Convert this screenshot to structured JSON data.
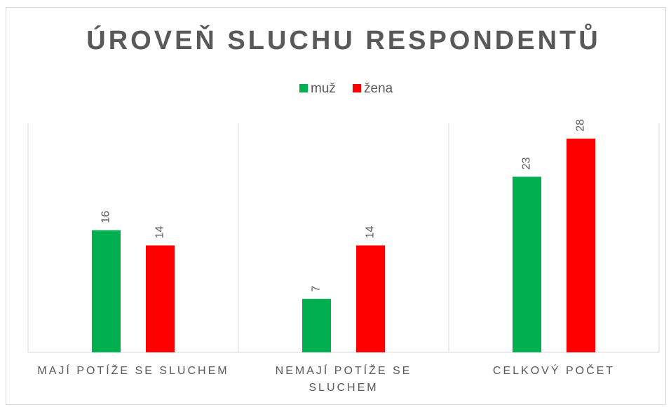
{
  "chart_data": {
    "type": "bar",
    "title": "ÚROVEŇ SLUCHU RESPONDENTŮ",
    "categories": [
      "MAJÍ POTÍŽE SE SLUCHEM",
      "NEMAJÍ POTÍŽE SE SLUCHEM",
      "CELKOVÝ POČET"
    ],
    "series": [
      {
        "name": "muž",
        "color": "#00b050",
        "values": [
          16,
          7,
          23
        ]
      },
      {
        "name": "žena",
        "color": "#ff0000",
        "values": [
          14,
          14,
          28
        ]
      }
    ],
    "ylim": [
      0,
      30
    ],
    "legend": "top"
  }
}
